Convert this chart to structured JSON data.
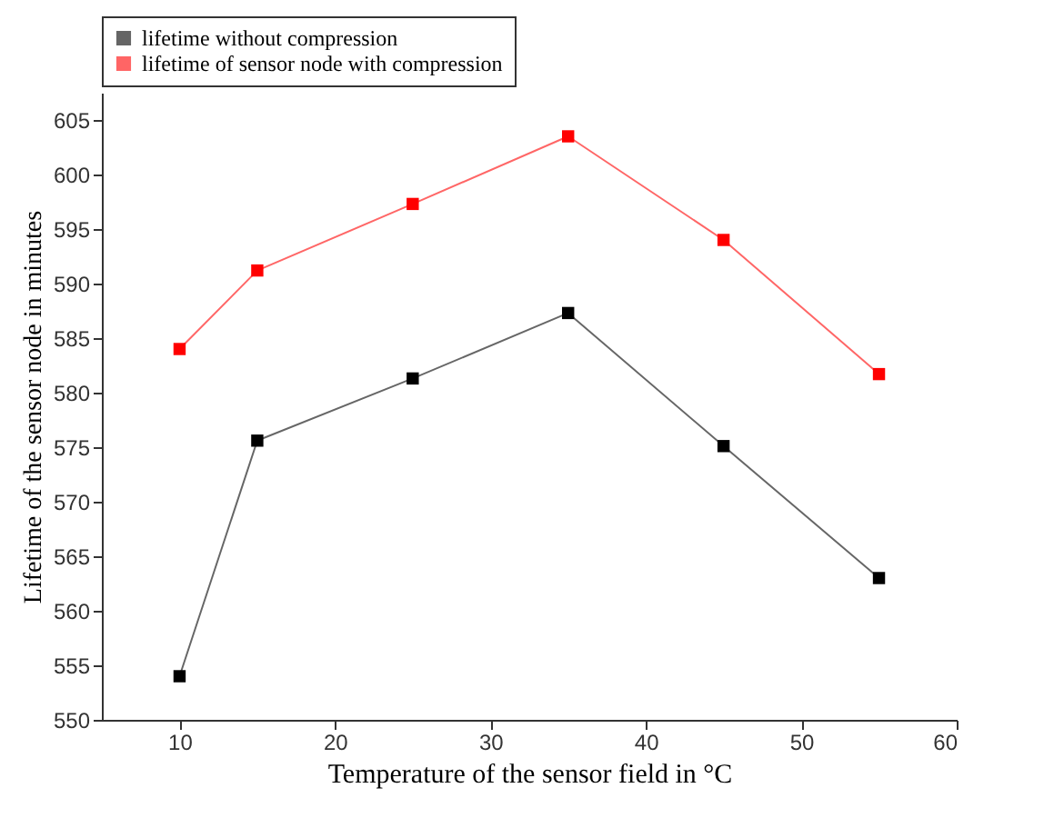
{
  "chart_data": {
    "type": "line",
    "xlabel": "Temperature of the sensor field in °C",
    "ylabel": "Lifetime of the sensor node in minutes",
    "x": [
      10,
      15,
      25,
      35,
      45,
      55
    ],
    "series": [
      {
        "name": "lifetime without compression",
        "color": "#000000",
        "values": [
          554,
          575.6,
          581.3,
          587.3,
          575.1,
          563
        ]
      },
      {
        "name": "lifetime of sensor node with compression",
        "color": "#ff0000",
        "values": [
          584,
          591.2,
          597.3,
          603.5,
          594,
          581.7
        ]
      }
    ],
    "xlim": [
      5,
      60
    ],
    "xticks": [
      10,
      20,
      30,
      40,
      50,
      60
    ],
    "ylim": [
      550,
      607.5
    ],
    "yticks": [
      550,
      555,
      560,
      565,
      570,
      575,
      580,
      585,
      590,
      595,
      600,
      605
    ],
    "grid": false,
    "legend": "top",
    "marker": "square",
    "line_style": "solid"
  }
}
